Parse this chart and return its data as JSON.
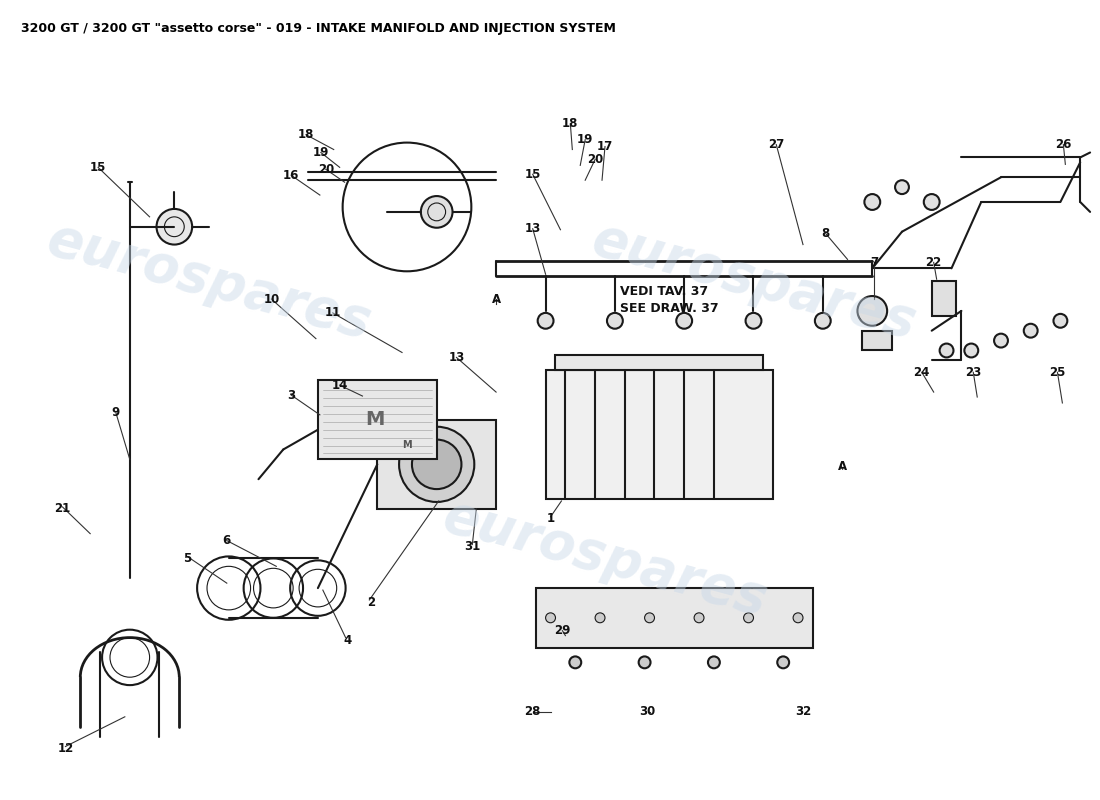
{
  "title": "3200 GT / 3200 GT \"assetto corse\" - 019 - INTAKE MANIFOLD AND INJECTION SYSTEM",
  "title_fontsize": 9,
  "title_color": "#000000",
  "background_color": "#ffffff",
  "watermark_text": "eurospares",
  "watermark_color": "#c8d8e8",
  "watermark_alpha": 0.45,
  "part_numbers": [
    1,
    2,
    3,
    4,
    5,
    6,
    7,
    8,
    9,
    10,
    11,
    12,
    13,
    14,
    15,
    16,
    17,
    18,
    19,
    20,
    21,
    22,
    23,
    24,
    25,
    26,
    27,
    28,
    29,
    30,
    31,
    32
  ],
  "annotation_text1": "VEDI TAV. 37",
  "annotation_text2": "SEE DRAW. 37",
  "label_A": "A",
  "figsize": [
    11,
    8
  ],
  "dpi": 100
}
